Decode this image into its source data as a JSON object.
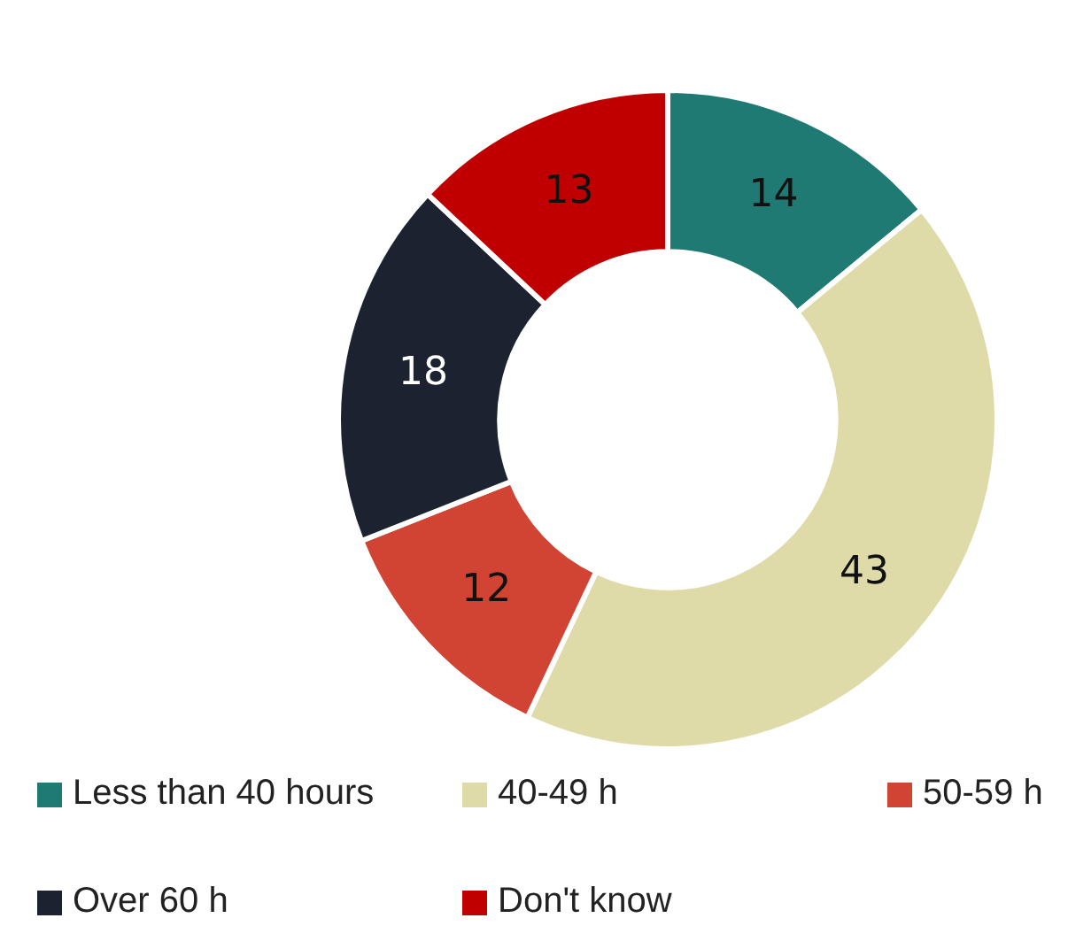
{
  "chart_data": {
    "type": "donut",
    "categories": [
      "Less than 40 hours",
      "40-49 h",
      "50-59 h",
      "Over 60 h",
      "Don't know"
    ],
    "values": [
      14,
      43,
      12,
      18,
      13
    ],
    "colors": [
      "#1e7a72",
      "#dedba8",
      "#d14333",
      "#1c2230",
      "#c00000"
    ],
    "data_labels": true,
    "legend": "bottom"
  }
}
